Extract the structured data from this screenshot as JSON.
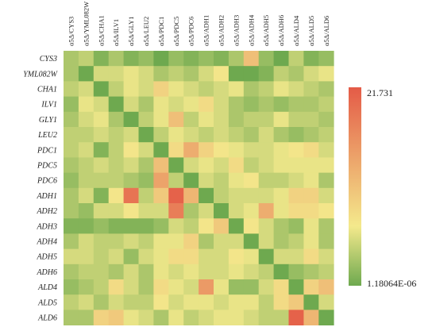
{
  "chart_data": {
    "type": "heatmap",
    "columns": [
      "α5Δ/CYS3",
      "α5Δ/YML082W",
      "α5Δ/CHA1",
      "α5Δ/ILV1",
      "α5Δ/GLY1",
      "α5Δ/LEU2",
      "α5Δ/PDC1",
      "α5Δ/PDC5",
      "α5Δ/PDC6",
      "α5Δ/ADH1",
      "α5Δ/ADH2",
      "α5Δ/ADH3",
      "α5Δ/ADH4",
      "α5Δ/ADH5",
      "α5Δ/ADH6",
      "α5Δ/ALD4",
      "α5Δ/ALD5",
      "α5Δ/ALD6"
    ],
    "rows": [
      "CYS3",
      "YML082W",
      "CHA1",
      "ILV1",
      "GLY1",
      "LEU2",
      "PDC1",
      "PDC5",
      "PDC6",
      "ADH1",
      "ADH2",
      "ADH3",
      "ADH4",
      "ADH5",
      "ADH6",
      "ALD4",
      "ALD5",
      "ALD6"
    ],
    "values": [
      [
        3,
        4,
        1,
        3,
        1,
        2,
        0,
        2,
        1,
        2,
        1,
        3,
        11,
        2,
        0,
        4,
        1,
        2
      ],
      [
        3,
        0,
        5,
        5,
        6,
        5,
        3,
        4,
        3,
        5,
        7,
        0,
        0,
        1,
        4,
        3,
        5,
        6
      ],
      [
        4,
        5,
        0,
        4,
        6,
        5,
        9,
        6,
        5,
        4,
        5,
        6,
        3,
        4,
        6,
        5,
        4,
        3
      ],
      [
        2,
        6,
        5,
        0,
        5,
        3,
        6,
        5,
        6,
        8,
        5,
        3,
        2,
        3,
        2,
        3,
        3,
        4
      ],
      [
        3,
        5,
        6,
        3,
        0,
        4,
        6,
        11,
        4,
        6,
        5,
        3,
        4,
        4,
        6,
        4,
        4,
        3
      ],
      [
        4,
        4,
        5,
        4,
        5,
        0,
        4,
        6,
        5,
        4,
        5,
        4,
        3,
        5,
        3,
        2,
        3,
        4
      ],
      [
        4,
        5,
        1,
        4,
        7,
        5,
        0,
        8,
        13,
        9,
        7,
        6,
        5,
        5,
        6,
        7,
        8,
        5
      ],
      [
        3,
        4,
        5,
        4,
        5,
        3,
        11,
        0,
        5,
        6,
        5,
        8,
        4,
        5,
        6,
        6,
        6,
        6
      ],
      [
        2,
        4,
        4,
        4,
        3,
        2,
        14,
        4,
        0,
        5,
        4,
        6,
        7,
        4,
        4,
        5,
        6,
        3
      ],
      [
        3,
        5,
        1,
        7,
        19,
        4,
        10,
        21,
        12,
        0,
        4,
        5,
        5,
        5,
        6,
        9,
        9,
        5
      ],
      [
        3,
        2,
        5,
        5,
        7,
        5,
        5,
        18,
        3,
        5,
        0,
        5,
        6,
        13,
        6,
        8,
        8,
        7
      ],
      [
        1,
        1,
        2,
        1,
        1,
        1,
        2,
        5,
        4,
        7,
        10,
        0,
        7,
        5,
        3,
        2,
        6,
        3
      ],
      [
        3,
        5,
        4,
        4,
        5,
        4,
        6,
        6,
        9,
        3,
        5,
        5,
        0,
        5,
        3,
        4,
        6,
        3
      ],
      [
        5,
        5,
        4,
        5,
        2,
        5,
        6,
        8,
        8,
        5,
        5,
        7,
        6,
        0,
        5,
        5,
        8,
        5
      ],
      [
        3,
        4,
        4,
        3,
        5,
        3,
        6,
        5,
        6,
        5,
        5,
        6,
        5,
        4,
        0,
        2,
        3,
        4
      ],
      [
        2,
        3,
        4,
        8,
        5,
        3,
        8,
        6,
        5,
        15,
        6,
        2,
        2,
        5,
        8,
        0,
        9,
        11
      ],
      [
        4,
        5,
        3,
        5,
        4,
        4,
        7,
        5,
        6,
        6,
        5,
        6,
        6,
        4,
        8,
        10,
        0,
        5
      ],
      [
        3,
        3,
        9,
        10,
        6,
        5,
        3,
        6,
        4,
        5,
        6,
        6,
        5,
        4,
        4,
        21,
        12,
        0
      ]
    ],
    "scale": {
      "min_label": "1.18064E-06",
      "max_label": "21.731",
      "min": 1.18064e-06,
      "max": 21.731
    },
    "colors": {
      "low": "#6ea94f",
      "mid": "#f4e98c",
      "high": "#e45b47"
    }
  }
}
